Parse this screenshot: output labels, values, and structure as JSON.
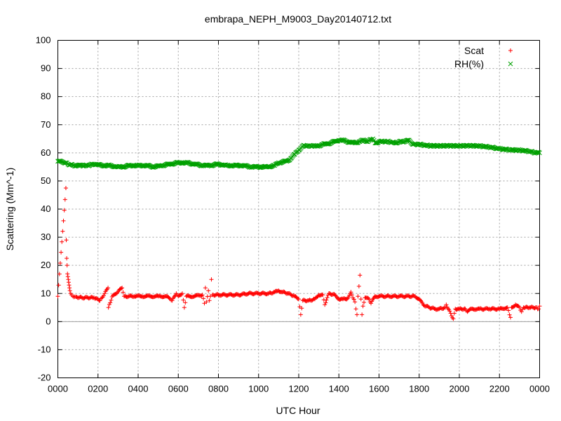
{
  "chart_data": {
    "type": "scatter",
    "title": "embrapa_NEPH_M9003_Day20140712.txt",
    "xlabel": "UTC Hour",
    "ylabel": "Scattering (Mm^-1)",
    "xlim": [
      0,
      2400
    ],
    "ylim": [
      -20,
      100
    ],
    "x_tick_labels": [
      "0000",
      "0200",
      "0400",
      "0600",
      "0800",
      "1000",
      "1200",
      "1400",
      "1600",
      "1800",
      "2000",
      "2200",
      "0000"
    ],
    "y_ticks": [
      -20,
      -10,
      0,
      10,
      20,
      30,
      40,
      50,
      60,
      70,
      80,
      90,
      100
    ],
    "grid": true,
    "zero_line": true,
    "legend_position": "top-right",
    "series": [
      {
        "name": "Scat",
        "color": "#ff0000",
        "marker": "plus",
        "points": [
          [
            0,
            9
          ],
          [
            40,
            47.5
          ],
          [
            42,
            29
          ],
          [
            44,
            22.5
          ],
          [
            46,
            20
          ],
          [
            48,
            17
          ],
          [
            50,
            16
          ],
          [
            52,
            15
          ],
          [
            54,
            14
          ],
          [
            56,
            13
          ],
          [
            58,
            12
          ],
          [
            60,
            11
          ],
          [
            64,
            10
          ],
          [
            68,
            9.5
          ],
          [
            75,
            9
          ],
          [
            90,
            8.8
          ],
          [
            120,
            8.5
          ],
          [
            150,
            8.5
          ],
          [
            180,
            8.5
          ],
          [
            210,
            7.5
          ],
          [
            220,
            8.5
          ],
          [
            250,
            12
          ],
          [
            252,
            5
          ],
          [
            270,
            8.8
          ],
          [
            320,
            12
          ],
          [
            330,
            9
          ],
          [
            380,
            9
          ],
          [
            420,
            9
          ],
          [
            460,
            9
          ],
          [
            500,
            9
          ],
          [
            540,
            9
          ],
          [
            560,
            8
          ],
          [
            570,
            7.5
          ],
          [
            590,
            10
          ],
          [
            600,
            9
          ],
          [
            620,
            10
          ],
          [
            630,
            5
          ],
          [
            640,
            9
          ],
          [
            680,
            9
          ],
          [
            720,
            9.5
          ],
          [
            730,
            6.5
          ],
          [
            735,
            12
          ],
          [
            740,
            7
          ],
          [
            750,
            11
          ],
          [
            755,
            7.5
          ],
          [
            760,
            9
          ],
          [
            765,
            15
          ],
          [
            770,
            9.5
          ],
          [
            800,
            9.5
          ],
          [
            850,
            9.5
          ],
          [
            900,
            9.5
          ],
          [
            950,
            10
          ],
          [
            1000,
            10
          ],
          [
            1050,
            10
          ],
          [
            1080,
            10.5
          ],
          [
            1100,
            11
          ],
          [
            1120,
            10.5
          ],
          [
            1150,
            10
          ],
          [
            1180,
            9
          ],
          [
            1200,
            8
          ],
          [
            1210,
            2.5
          ],
          [
            1220,
            7.5
          ],
          [
            1250,
            7.5
          ],
          [
            1280,
            8
          ],
          [
            1300,
            9.5
          ],
          [
            1320,
            9.5
          ],
          [
            1330,
            6
          ],
          [
            1350,
            10
          ],
          [
            1380,
            9.5
          ],
          [
            1400,
            8
          ],
          [
            1420,
            8
          ],
          [
            1440,
            8
          ],
          [
            1460,
            10.5
          ],
          [
            1465,
            9.5
          ],
          [
            1480,
            7
          ],
          [
            1490,
            2.5
          ],
          [
            1495,
            9
          ],
          [
            1505,
            16.5
          ],
          [
            1510,
            8
          ],
          [
            1515,
            2.5
          ],
          [
            1520,
            5.5
          ],
          [
            1530,
            8.5
          ],
          [
            1550,
            8
          ],
          [
            1560,
            6.5
          ],
          [
            1580,
            9
          ],
          [
            1600,
            9
          ],
          [
            1650,
            9
          ],
          [
            1700,
            9
          ],
          [
            1750,
            9
          ],
          [
            1780,
            9
          ],
          [
            1800,
            8
          ],
          [
            1820,
            6
          ],
          [
            1850,
            5
          ],
          [
            1880,
            4.5
          ],
          [
            1900,
            4.5
          ],
          [
            1930,
            5
          ],
          [
            1935,
            6
          ],
          [
            1970,
            1
          ],
          [
            1980,
            4.5
          ],
          [
            2000,
            4.5
          ],
          [
            2030,
            4.5
          ],
          [
            2040,
            3.5
          ],
          [
            2060,
            4.5
          ],
          [
            2100,
            4.5
          ],
          [
            2150,
            4.5
          ],
          [
            2200,
            4.5
          ],
          [
            2240,
            5
          ],
          [
            2255,
            1.5
          ],
          [
            2260,
            5
          ],
          [
            2280,
            6
          ],
          [
            2300,
            5
          ],
          [
            2310,
            3.5
          ],
          [
            2320,
            5
          ],
          [
            2350,
            5
          ],
          [
            2380,
            5
          ],
          [
            2395,
            4.5
          ],
          [
            2400,
            5.5
          ]
        ]
      },
      {
        "name": "RH(%)",
        "color": "#00a000",
        "marker": "cross",
        "points": [
          [
            0,
            57
          ],
          [
            40,
            56.5
          ],
          [
            50,
            56
          ],
          [
            80,
            55.5
          ],
          [
            120,
            55.5
          ],
          [
            150,
            55.5
          ],
          [
            180,
            56
          ],
          [
            220,
            55.5
          ],
          [
            260,
            55.5
          ],
          [
            300,
            55
          ],
          [
            320,
            55
          ],
          [
            360,
            55.5
          ],
          [
            400,
            55.5
          ],
          [
            440,
            55.5
          ],
          [
            480,
            55
          ],
          [
            520,
            55.5
          ],
          [
            560,
            56
          ],
          [
            600,
            56.5
          ],
          [
            640,
            56.5
          ],
          [
            680,
            56
          ],
          [
            720,
            55.5
          ],
          [
            760,
            55.5
          ],
          [
            800,
            56
          ],
          [
            840,
            55.5
          ],
          [
            880,
            55.5
          ],
          [
            920,
            55.5
          ],
          [
            960,
            55
          ],
          [
            1000,
            55
          ],
          [
            1040,
            55
          ],
          [
            1080,
            55.5
          ],
          [
            1100,
            56.5
          ],
          [
            1140,
            57
          ],
          [
            1160,
            58
          ],
          [
            1180,
            59.5
          ],
          [
            1200,
            61
          ],
          [
            1220,
            62.5
          ],
          [
            1250,
            62.5
          ],
          [
            1280,
            62.5
          ],
          [
            1300,
            62.5
          ],
          [
            1320,
            63
          ],
          [
            1360,
            63.5
          ],
          [
            1400,
            64.5
          ],
          [
            1420,
            64.5
          ],
          [
            1440,
            64
          ],
          [
            1480,
            63.5
          ],
          [
            1500,
            64
          ],
          [
            1520,
            64.5
          ],
          [
            1540,
            64
          ],
          [
            1570,
            65
          ],
          [
            1580,
            63.5
          ],
          [
            1600,
            64
          ],
          [
            1620,
            64
          ],
          [
            1650,
            64
          ],
          [
            1680,
            63.5
          ],
          [
            1700,
            64
          ],
          [
            1730,
            64
          ],
          [
            1750,
            64.5
          ],
          [
            1770,
            63
          ],
          [
            1800,
            63
          ],
          [
            1850,
            62.5
          ],
          [
            1900,
            62.5
          ],
          [
            1950,
            62.5
          ],
          [
            2000,
            62.5
          ],
          [
            2050,
            62.5
          ],
          [
            2100,
            62.5
          ],
          [
            2150,
            62
          ],
          [
            2200,
            61.5
          ],
          [
            2250,
            61
          ],
          [
            2300,
            61
          ],
          [
            2350,
            60.5
          ],
          [
            2380,
            60
          ],
          [
            2400,
            60
          ]
        ]
      }
    ]
  }
}
